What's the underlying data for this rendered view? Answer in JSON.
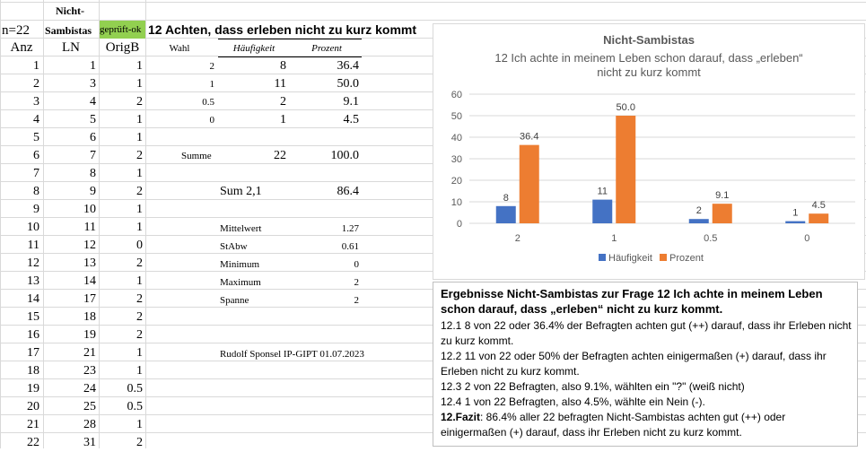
{
  "sheet": {
    "header": {
      "n_label": "n=22",
      "nicht_label": "Nicht-",
      "sambistas_label": "Sambistas",
      "geprueft_label": "geprüft-ok",
      "question_title": "12 Achten, dass erleben nicht zu kurz kommt",
      "anz_label": "Anz",
      "ln_label": "LN",
      "origb_label": "OrigB",
      "wahl_label": "Wahl",
      "haeufigkeit_label": "Häufigkeit",
      "prozent_label": "Prozent"
    },
    "rows": [
      {
        "anz": "1",
        "ln": "1",
        "origb": "1"
      },
      {
        "anz": "2",
        "ln": "3",
        "origb": "1"
      },
      {
        "anz": "3",
        "ln": "4",
        "origb": "2"
      },
      {
        "anz": "4",
        "ln": "5",
        "origb": "1"
      },
      {
        "anz": "5",
        "ln": "6",
        "origb": "1"
      },
      {
        "anz": "6",
        "ln": "7",
        "origb": "2"
      },
      {
        "anz": "7",
        "ln": "8",
        "origb": "1"
      },
      {
        "anz": "8",
        "ln": "9",
        "origb": "2"
      },
      {
        "anz": "9",
        "ln": "10",
        "origb": "1"
      },
      {
        "anz": "10",
        "ln": "11",
        "origb": "1"
      },
      {
        "anz": "11",
        "ln": "12",
        "origb": "0"
      },
      {
        "anz": "12",
        "ln": "13",
        "origb": "2"
      },
      {
        "anz": "13",
        "ln": "14",
        "origb": "1"
      },
      {
        "anz": "14",
        "ln": "17",
        "origb": "2"
      },
      {
        "anz": "15",
        "ln": "18",
        "origb": "2"
      },
      {
        "anz": "16",
        "ln": "19",
        "origb": "2"
      },
      {
        "anz": "17",
        "ln": "21",
        "origb": "1"
      },
      {
        "anz": "18",
        "ln": "23",
        "origb": "1"
      },
      {
        "anz": "19",
        "ln": "24",
        "origb": "0.5"
      },
      {
        "anz": "20",
        "ln": "25",
        "origb": "0.5"
      },
      {
        "anz": "21",
        "ln": "28",
        "origb": "1"
      },
      {
        "anz": "22",
        "ln": "31",
        "origb": "2"
      }
    ],
    "freq": [
      {
        "wahl": "2",
        "haeufigkeit": "8",
        "prozent": "36.4"
      },
      {
        "wahl": "1",
        "haeufigkeit": "11",
        "prozent": "50.0"
      },
      {
        "wahl": "0.5",
        "haeufigkeit": "2",
        "prozent": "9.1"
      },
      {
        "wahl": "0",
        "haeufigkeit": "1",
        "prozent": "4.5"
      }
    ],
    "summe_label": "Summe",
    "summe_haeufigkeit": "22",
    "summe_prozent": "100.0",
    "sum21_label": "Sum 2,1",
    "sum21_value": "86.4",
    "stats": [
      {
        "label": "Mittelwert",
        "value": "1.27"
      },
      {
        "label": "StAbw",
        "value": "0.61"
      },
      {
        "label": "Minimum",
        "value": "0"
      },
      {
        "label": "Maximum",
        "value": "2"
      },
      {
        "label": "Spanne",
        "value": "2"
      }
    ],
    "author": "Rudolf Sponsel IP-GIPT 01.07.2023"
  },
  "chart_data": {
    "type": "bar",
    "title": "Nicht-Sambistas",
    "subtitle_line1": "12 Ich achte in meinem Leben schon darauf,  dass „erleben“",
    "subtitle_line2": "nicht zu kurz kommt",
    "categories": [
      "2",
      "1",
      "0.5",
      "0"
    ],
    "series": [
      {
        "name": "Häufigkeit",
        "values": [
          8,
          11,
          2,
          1
        ],
        "labels": [
          "8",
          "11",
          "2",
          "1"
        ],
        "color": "#4472c4"
      },
      {
        "name": "Prozent",
        "values": [
          36.4,
          50.0,
          9.1,
          4.5
        ],
        "labels": [
          "36.4",
          "50.0",
          "9.1",
          "4.5"
        ],
        "color": "#ed7d31"
      }
    ],
    "ylim": [
      0,
      60
    ],
    "yticks": [
      "0",
      "10",
      "20",
      "30",
      "40",
      "50",
      "60"
    ],
    "grid": true,
    "legend": "bottom"
  },
  "textbox": {
    "title": "Ergebnisse  Nicht-Sambistas zur Frage 12 Ich achte in meinem Leben schon darauf, dass „erleben“  nicht zu kurz kommt.",
    "p1": "12.1   8 von 22 oder 36.4% der Befragten achten gut (++) darauf, dass ihr Erleben nicht zu kurz kommt.",
    "p2": "12.2   11 von 22 oder 50% der Befragten achten einigermaßen (+) darauf, dass ihr Erleben nicht zu kurz kommt.",
    "p3": "12.3  2 von 22 Befragten, also 9.1%, wählten ein \"?\" (weiß nicht)",
    "p4": "12.4  1 von 22 Befragten, also 4.5%, wählte ein Nein (-).",
    "fazit_label": "12.Fazit",
    "fazit_text": ": 86.4%  aller 22 befragten Nicht-Sambistas achten gut (++) oder einigermaßen (+) darauf, dass ihr Erleben nicht zu kurz kommt."
  }
}
